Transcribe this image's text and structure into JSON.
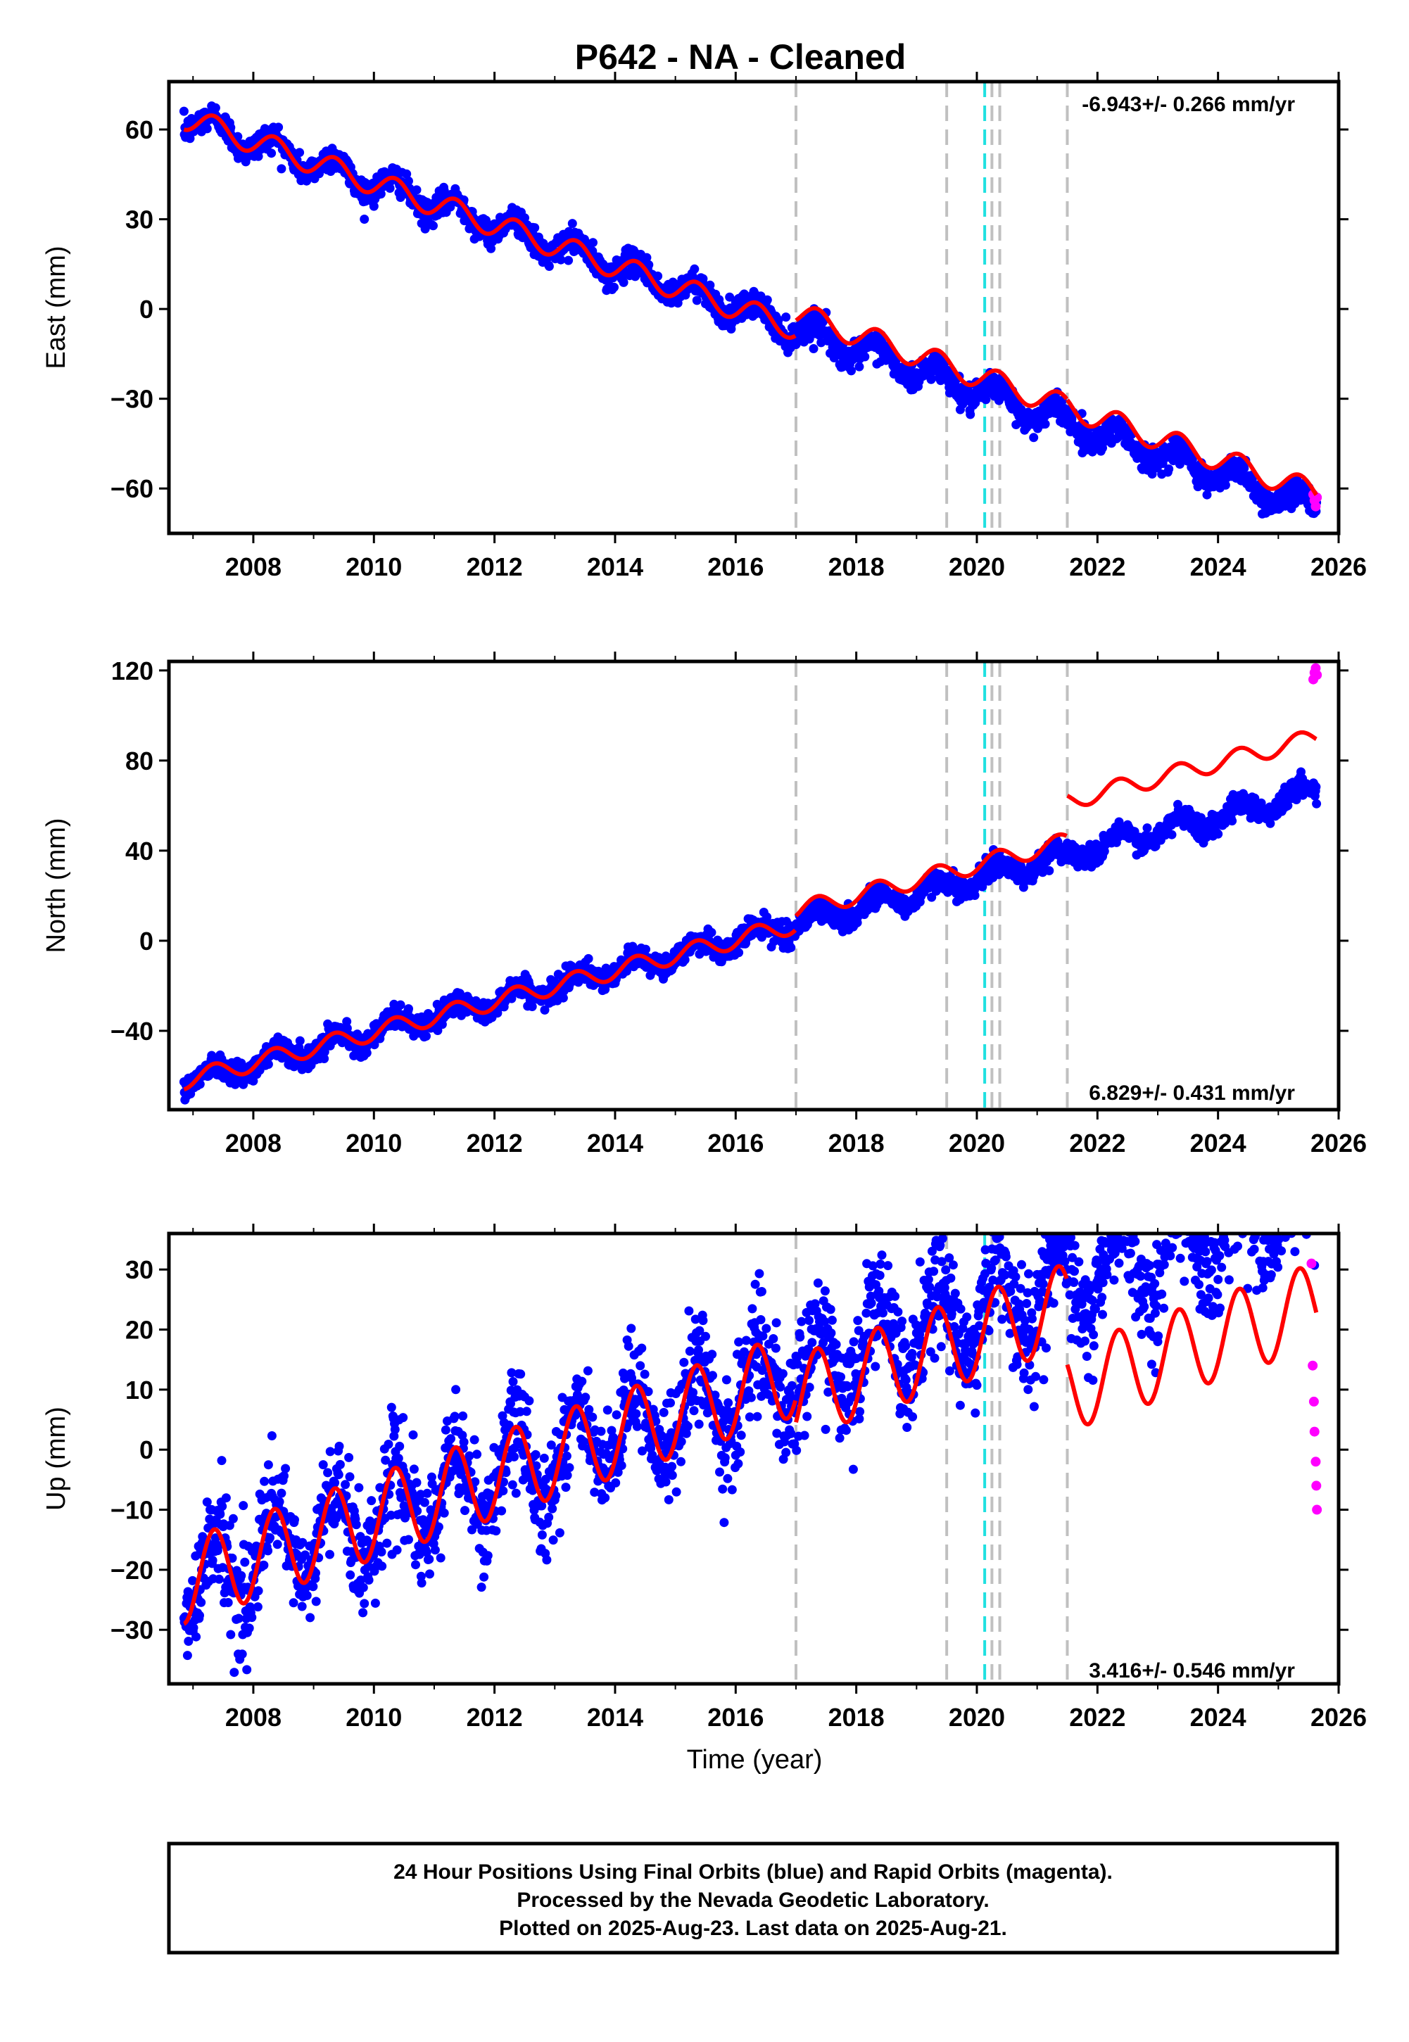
{
  "title": "P642  - NA - Cleaned",
  "xlabel": "Time (year)",
  "footer": {
    "line1": "24 Hour Positions Using Final Orbits (blue) and Rapid Orbits (magenta).",
    "line2": "Processed by the Nevada Geodetic Laboratory.",
    "line3": "Plotted on 2025-Aug-23. Last data on 2025-Aug-21."
  },
  "colors": {
    "final_orbits": "#0000ff",
    "rapid_orbits": "#ff00ff",
    "model": "#ff0000",
    "equipment_change": "#c0c0c0",
    "earthquake": "#20e0e0"
  },
  "chart_data": [
    {
      "type": "scatter",
      "ylabel": "East (mm)",
      "rate_label": "-6.943+/- 0.266 mm/yr",
      "xlim": [
        2006.6,
        2026
      ],
      "ylim": [
        -75,
        76
      ],
      "x_ticks": [
        2008,
        2010,
        2012,
        2014,
        2016,
        2018,
        2020,
        2022,
        2024,
        2026
      ],
      "y_ticks": [
        60,
        30,
        0,
        -30,
        -60
      ],
      "y_tick_labels": [
        "60",
        "30",
        "0",
        "−30",
        "−60"
      ],
      "start_decyear": 2006.85,
      "end_decyear": 2025.64,
      "trend_rate_mm_per_yr": -6.943,
      "value_at_start": 64,
      "seasonal_amplitude_mm": 4,
      "scatter_sigma_mm": 2.2,
      "series": [
        {
          "role": "final_orbits"
        },
        {
          "role": "rapid_orbits",
          "x": [
            2025.58,
            2025.6,
            2025.62,
            2025.64
          ],
          "y": [
            -62,
            -64,
            -66,
            -63
          ]
        },
        {
          "role": "model",
          "offsets": [
            {
              "x": 2017.0,
              "dy": 5
            },
            {
              "x": 2021.5,
              "dy": 0
            }
          ]
        }
      ]
    },
    {
      "type": "scatter",
      "ylabel": "North (mm)",
      "rate_label": "6.829+/- 0.431 mm/yr",
      "xlim": [
        2006.6,
        2026
      ],
      "ylim": [
        -75,
        124
      ],
      "x_ticks": [
        2008,
        2010,
        2012,
        2014,
        2016,
        2018,
        2020,
        2022,
        2024,
        2026
      ],
      "y_ticks": [
        120,
        80,
        40,
        0,
        -40
      ],
      "y_tick_labels": [
        "120",
        "80",
        "40",
        "0",
        "−40"
      ],
      "start_decyear": 2006.85,
      "end_decyear": 2025.64,
      "trend_rate_mm_per_yr": 6.829,
      "value_at_start": -62,
      "seasonal_amplitude_mm": 4,
      "scatter_sigma_mm": 2.5,
      "series": [
        {
          "role": "final_orbits"
        },
        {
          "role": "rapid_orbits",
          "x": [
            2025.58,
            2025.6,
            2025.62,
            2025.64
          ],
          "y": [
            116,
            119,
            121,
            118
          ]
        },
        {
          "role": "model",
          "offsets": [
            {
              "x": 2017.0,
              "dy": 6
            },
            {
              "x": 2021.5,
              "dy": 18
            }
          ]
        }
      ]
    },
    {
      "type": "scatter",
      "ylabel": "Up (mm)",
      "rate_label": "3.416+/- 0.546 mm/yr",
      "xlim": [
        2006.6,
        2026
      ],
      "ylim": [
        -39,
        36
      ],
      "x_ticks": [
        2008,
        2010,
        2012,
        2014,
        2016,
        2018,
        2020,
        2022,
        2024,
        2026
      ],
      "y_ticks": [
        30,
        20,
        10,
        0,
        -10,
        -20,
        -30
      ],
      "y_tick_labels": [
        "30",
        "20",
        "10",
        "0",
        "−10",
        "−20",
        "−30"
      ],
      "start_decyear": 2006.85,
      "end_decyear": 2025.64,
      "trend_rate_mm_per_yr": 3.416,
      "value_at_start": -22,
      "seasonal_amplitude_mm": 7,
      "scatter_sigma_mm": 4.5,
      "series": [
        {
          "role": "final_orbits"
        },
        {
          "role": "rapid_orbits",
          "x": [
            2025.55,
            2025.57,
            2025.59,
            2025.6,
            2025.62,
            2025.63,
            2025.64
          ],
          "y": [
            31,
            14,
            8,
            3,
            -2,
            -6,
            -10
          ]
        },
        {
          "role": "model",
          "offsets": [
            {
              "x": 2017.0,
              "dy": -4
            },
            {
              "x": 2021.5,
              "dy": -14
            }
          ]
        }
      ]
    }
  ],
  "event_lines": {
    "equipment_change": [
      2017.0,
      2019.5,
      2020.25,
      2020.38,
      2021.5
    ],
    "earthquake": [
      2020.13
    ]
  }
}
